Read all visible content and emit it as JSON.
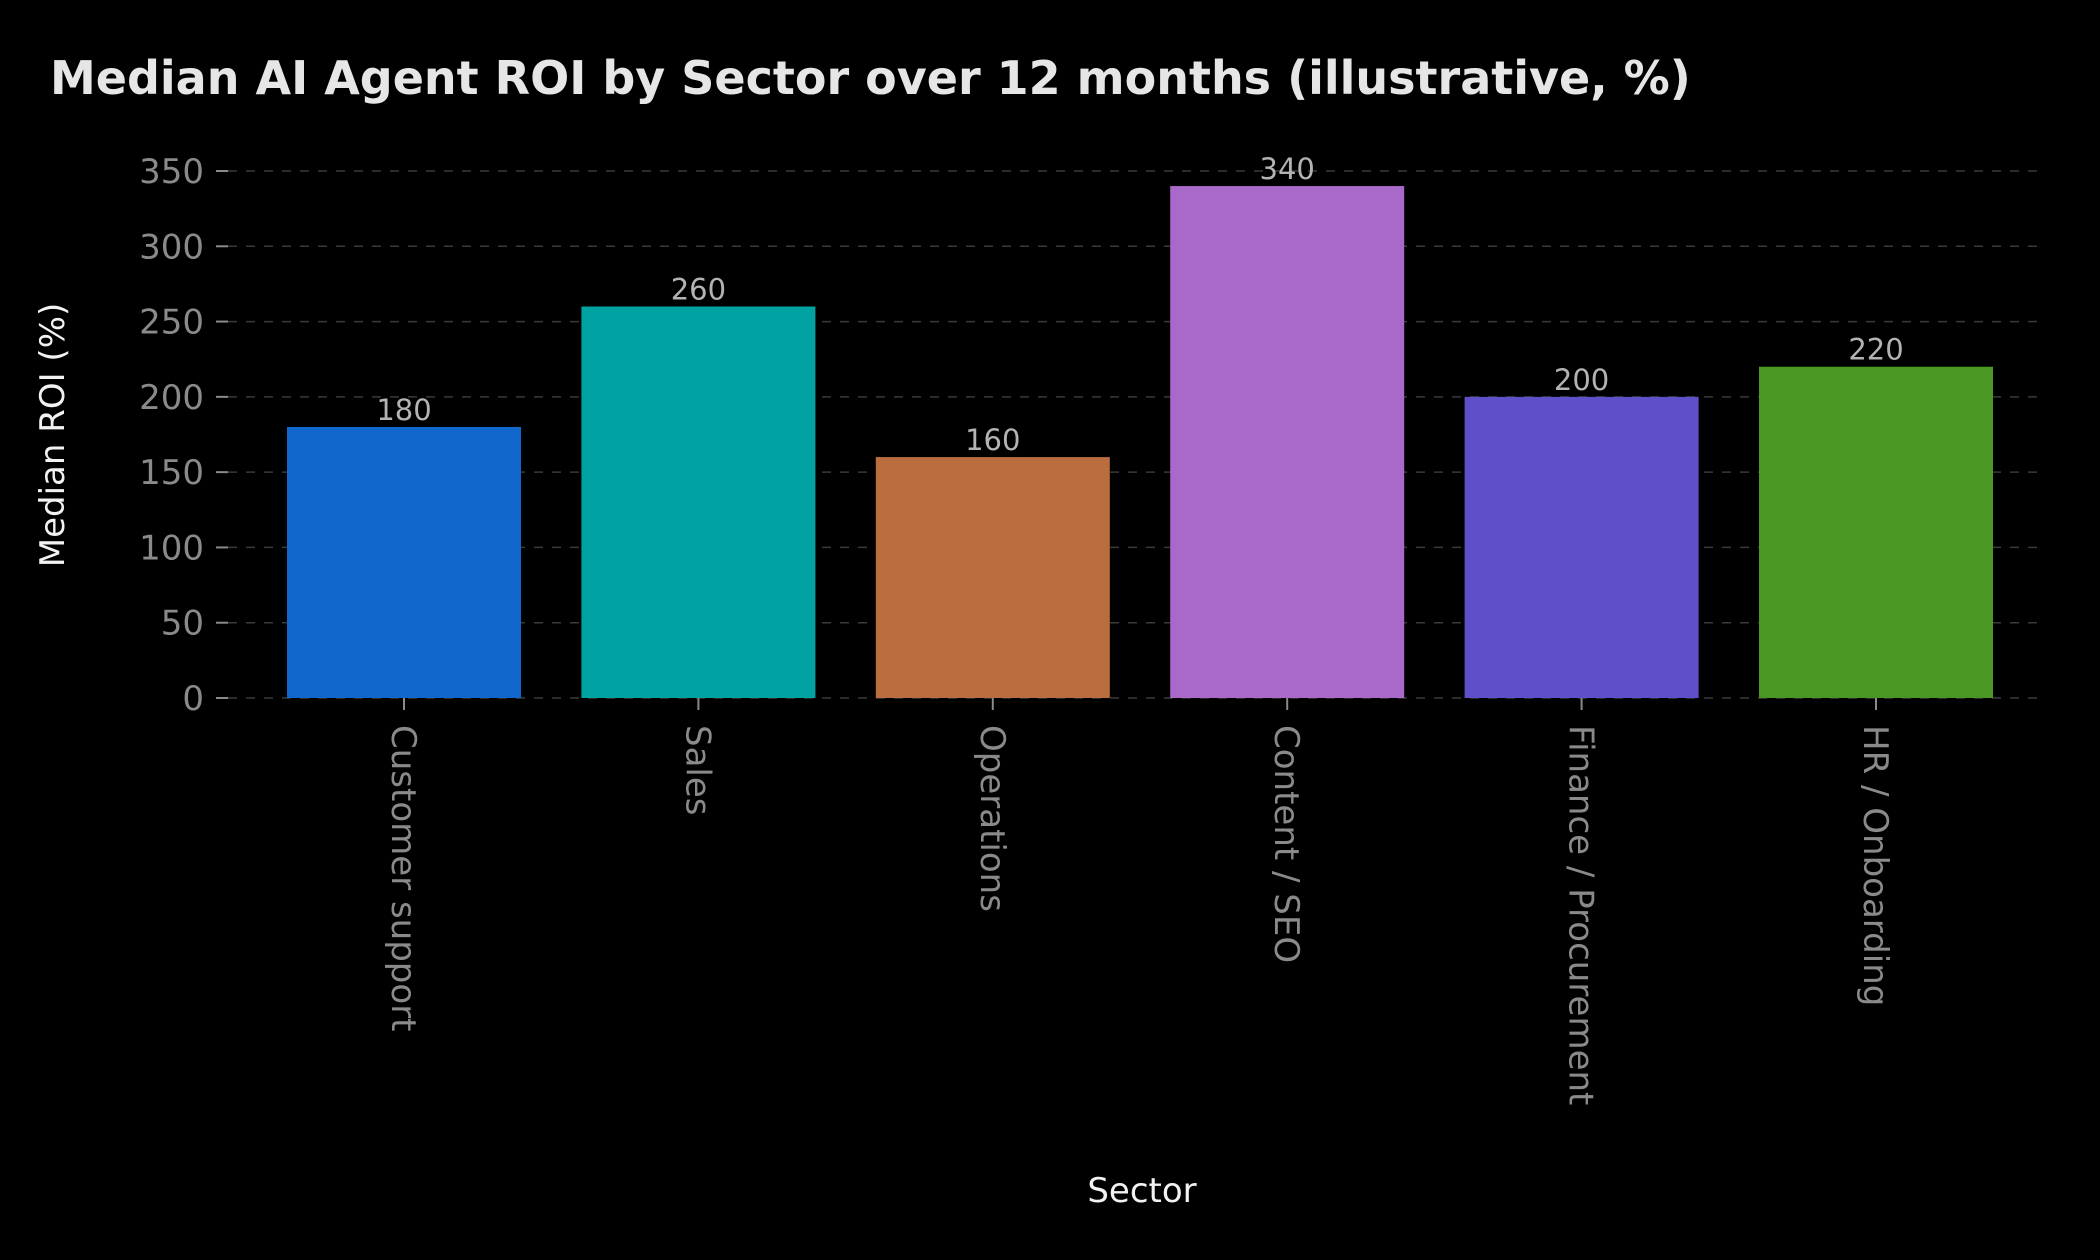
{
  "chart_data": {
    "type": "bar",
    "title": "Median AI Agent ROI by Sector over 12 months (illustrative, %)",
    "xlabel": "Sector",
    "ylabel": "Median ROI (%)",
    "categories": [
      "Customer support",
      "Sales",
      "Operations",
      "Content / SEO",
      "Finance / Procurement",
      "HR / Onboarding"
    ],
    "values": [
      180,
      260,
      160,
      340,
      200,
      220
    ],
    "value_labels": [
      "180",
      "260",
      "160",
      "340",
      "200",
      "220"
    ],
    "colors": [
      "#1167cc",
      "#00a3a1",
      "#ba6d3f",
      "#a969c9",
      "#5e50c8",
      "#4a9823"
    ],
    "ylim": [
      0,
      350
    ],
    "yticks": [
      0,
      50,
      100,
      150,
      200,
      250,
      300,
      350
    ],
    "ytick_labels": [
      "0",
      "50",
      "100",
      "150",
      "200",
      "250",
      "300",
      "350"
    ],
    "grid": true,
    "grid_axis": "y",
    "legend": "none",
    "background": "#000000"
  }
}
